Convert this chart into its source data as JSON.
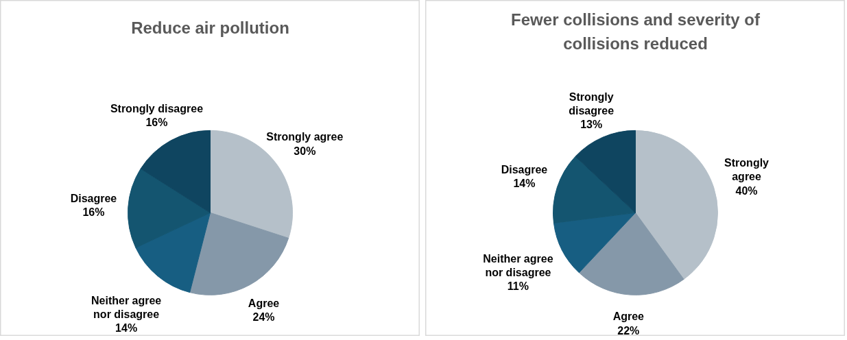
{
  "chart_data": [
    {
      "type": "pie",
      "title": "Reduce air pollution",
      "categories": [
        "Strongly agree",
        "Agree",
        "Neither agree nor disagree",
        "Disagree",
        "Strongly disagree"
      ],
      "values": [
        30,
        24,
        14,
        16,
        16
      ],
      "value_labels": [
        "30%",
        "24%",
        "14%",
        "16%",
        "16%"
      ],
      "colors": [
        "#b5c0c9",
        "#8598a9",
        "#175e82",
        "#145570",
        "#0f4560"
      ],
      "legend": false
    },
    {
      "type": "pie",
      "title": "Fewer collisions and severity of collisions reduced",
      "categories": [
        "Strongly agree",
        "Agree",
        "Neither agree nor disagree",
        "Disagree",
        "Strongly disagree"
      ],
      "values": [
        40,
        22,
        11,
        14,
        13
      ],
      "value_labels": [
        "40%",
        "22%",
        "11%",
        "14%",
        "13%"
      ],
      "colors": [
        "#b5c0c9",
        "#8598a9",
        "#175e82",
        "#145570",
        "#0f4560"
      ],
      "legend": false
    }
  ]
}
